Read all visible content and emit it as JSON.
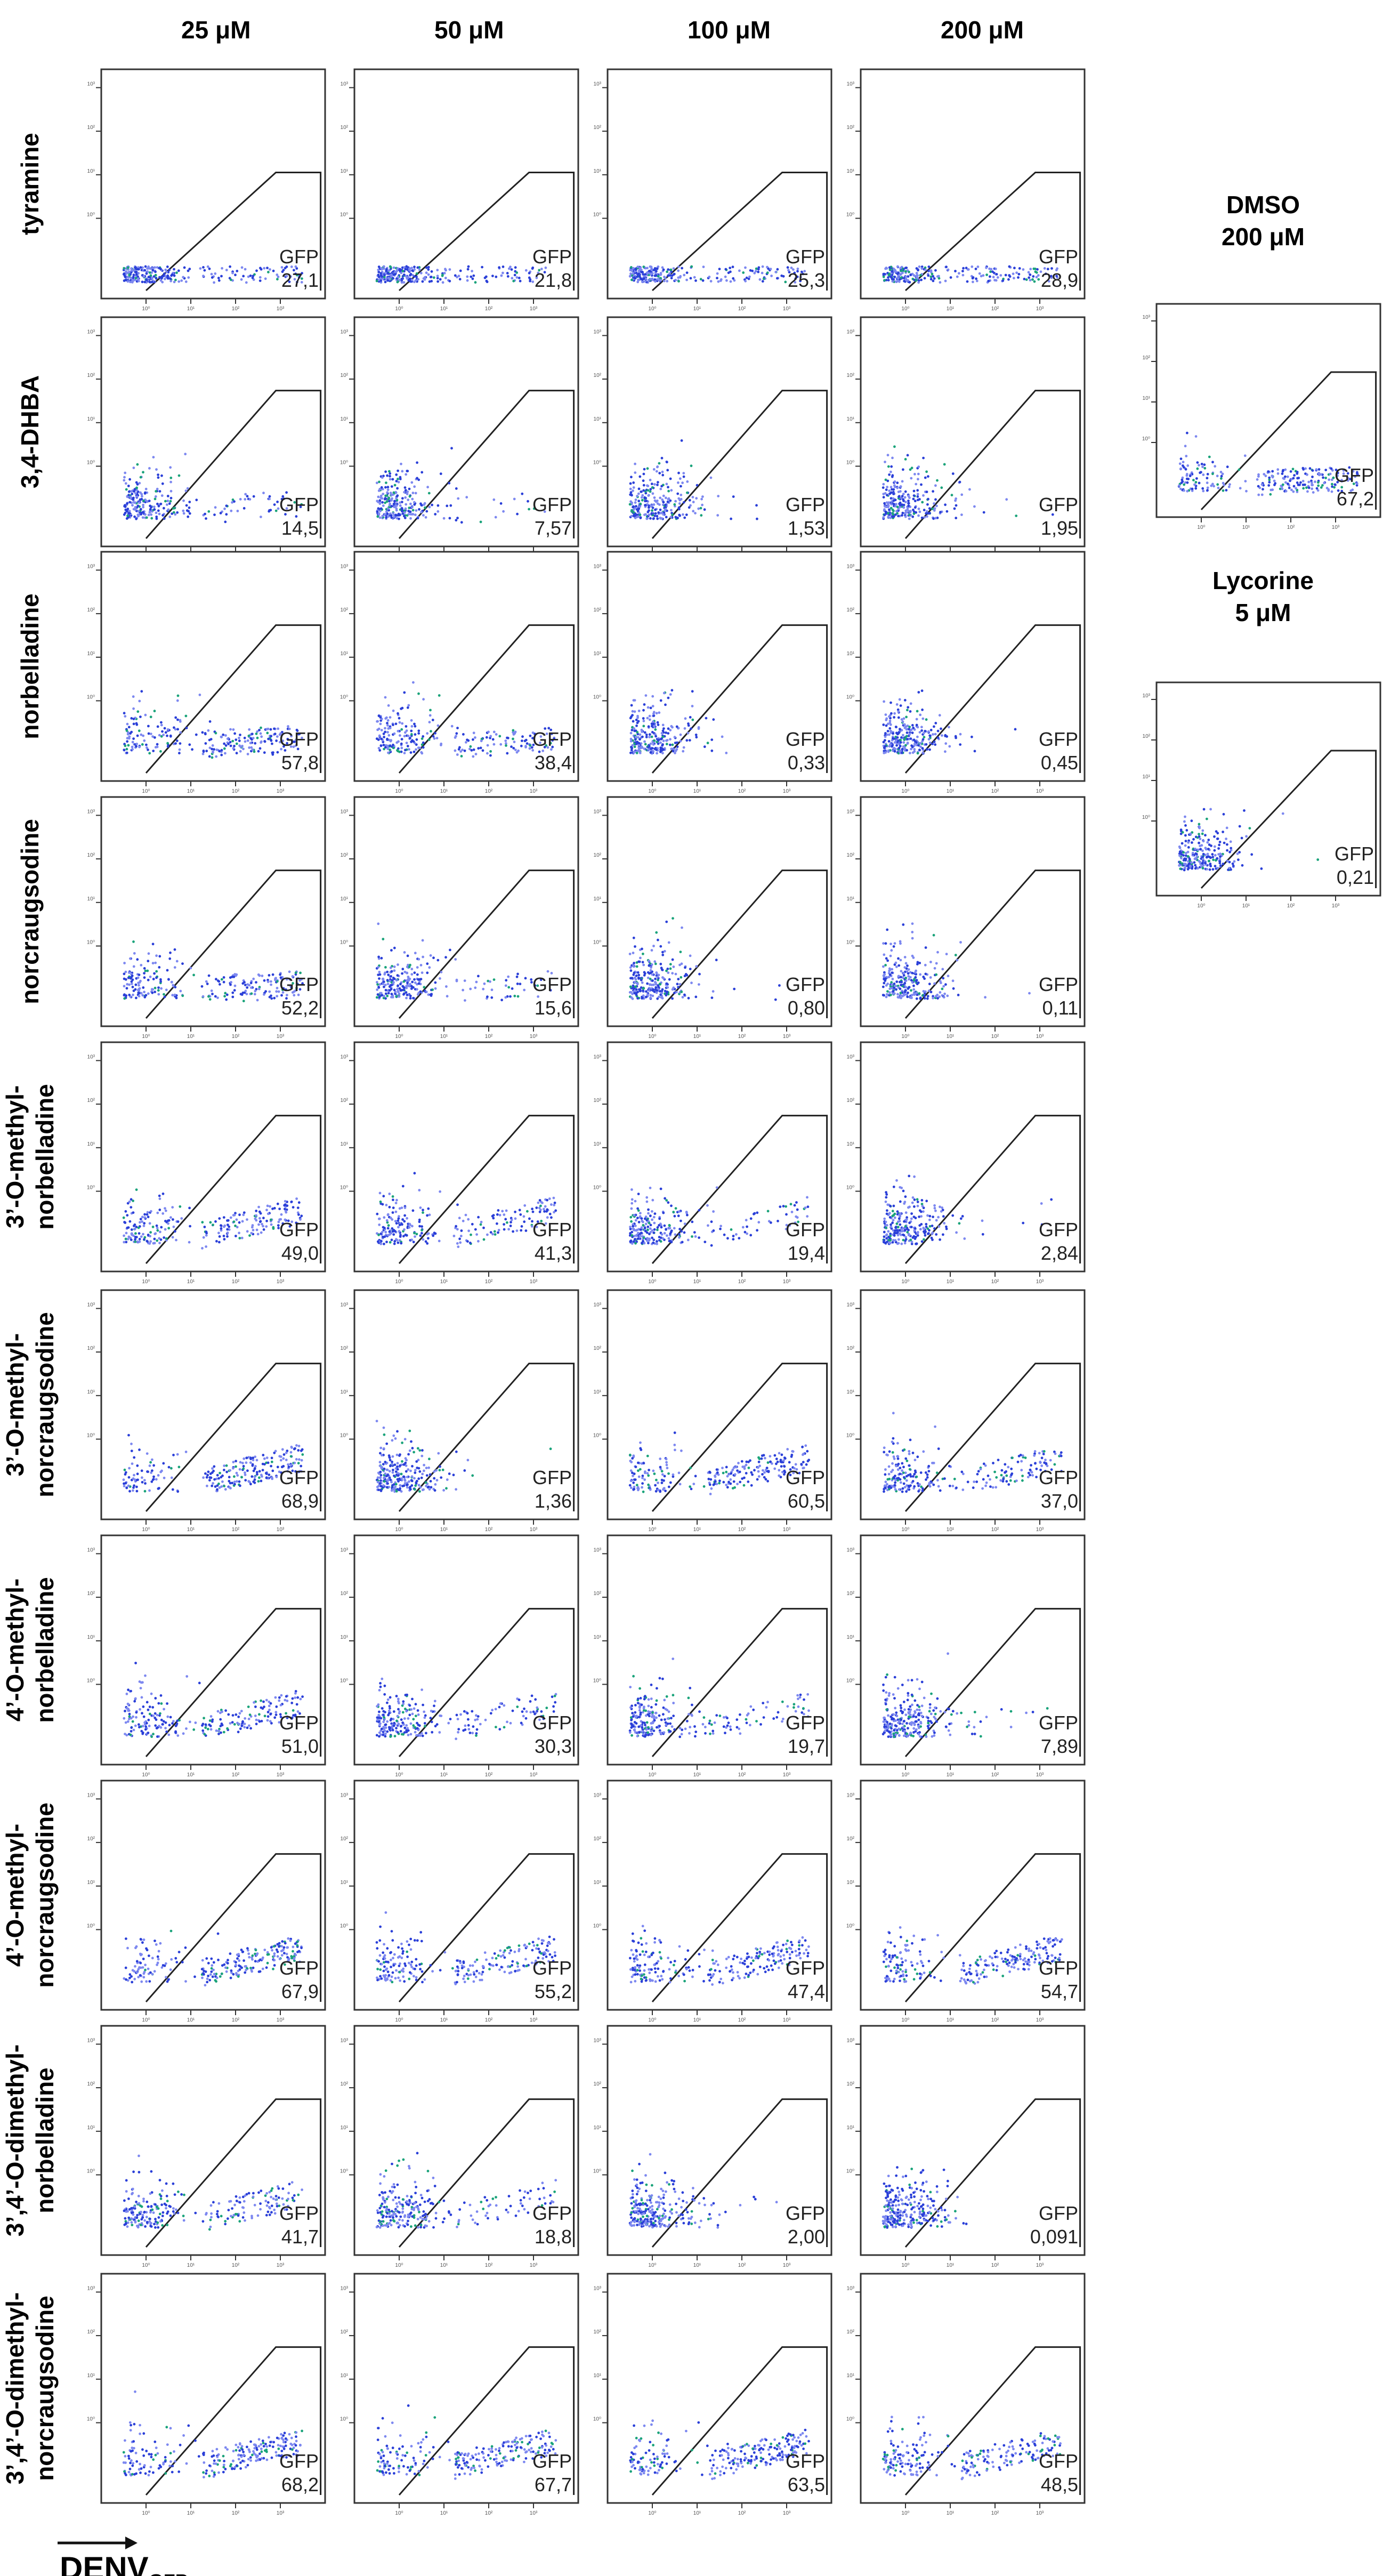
{
  "figure": {
    "x_axis_label": "DENV",
    "x_axis_subscript": "GFP"
  },
  "chart_data": {
    "type": "scatter",
    "title": "",
    "xlabel": "DENV GFP",
    "ylabel": "",
    "gate_label": "GFP",
    "x_tick_labels": [
      "10⁰",
      "10¹",
      "10²",
      "10³"
    ],
    "y_tick_labels": [
      "10⁰",
      "10¹",
      "10²",
      "10³"
    ],
    "concentrations": [
      "25 μM",
      "50 μM",
      "100 μM",
      "200 μM"
    ],
    "rows": [
      {
        "compound": [
          "tyramine"
        ],
        "values": [
          "27,1",
          "21,8",
          "25,3",
          "28,9"
        ]
      },
      {
        "compound": [
          "3,4-DHBA"
        ],
        "values": [
          "14,5",
          "7,57",
          "1,53",
          "1,95"
        ]
      },
      {
        "compound": [
          "norbelladine"
        ],
        "values": [
          "57,8",
          "38,4",
          "0,33",
          "0,45"
        ]
      },
      {
        "compound": [
          "norcraugsodine"
        ],
        "values": [
          "52,2",
          "15,6",
          "0,80",
          "0,11"
        ]
      },
      {
        "compound": [
          "3’-O-methyl-",
          "norbelladine"
        ],
        "values": [
          "49,0",
          "41,3",
          "19,4",
          "2,84"
        ]
      },
      {
        "compound": [
          "3’-O-methyl-",
          "norcraugsodine"
        ],
        "values": [
          "68,9",
          "1,36",
          "60,5",
          "37,0"
        ]
      },
      {
        "compound": [
          "4’-O-methyl-",
          "norbelladine"
        ],
        "values": [
          "51,0",
          "30,3",
          "19,7",
          "7,89"
        ]
      },
      {
        "compound": [
          "4’-O-methyl-",
          "norcraugsodine"
        ],
        "values": [
          "67,9",
          "55,2",
          "47,4",
          "54,7"
        ]
      },
      {
        "compound": [
          "3’,4’-O-dimethyl-",
          "norbelladine"
        ],
        "values": [
          "41,7",
          "18,8",
          "2,00",
          "0,091"
        ]
      },
      {
        "compound": [
          "3’,4’-O-dimethyl-",
          "norcraugsodine"
        ],
        "values": [
          "68,2",
          "67,7",
          "63,5",
          "48,5"
        ]
      }
    ],
    "controls": [
      {
        "name": "DMSO",
        "concentration": "200 μM",
        "value": "67,2"
      },
      {
        "name": "Lycorine",
        "concentration": "5 μM",
        "value": "0,21"
      }
    ]
  }
}
